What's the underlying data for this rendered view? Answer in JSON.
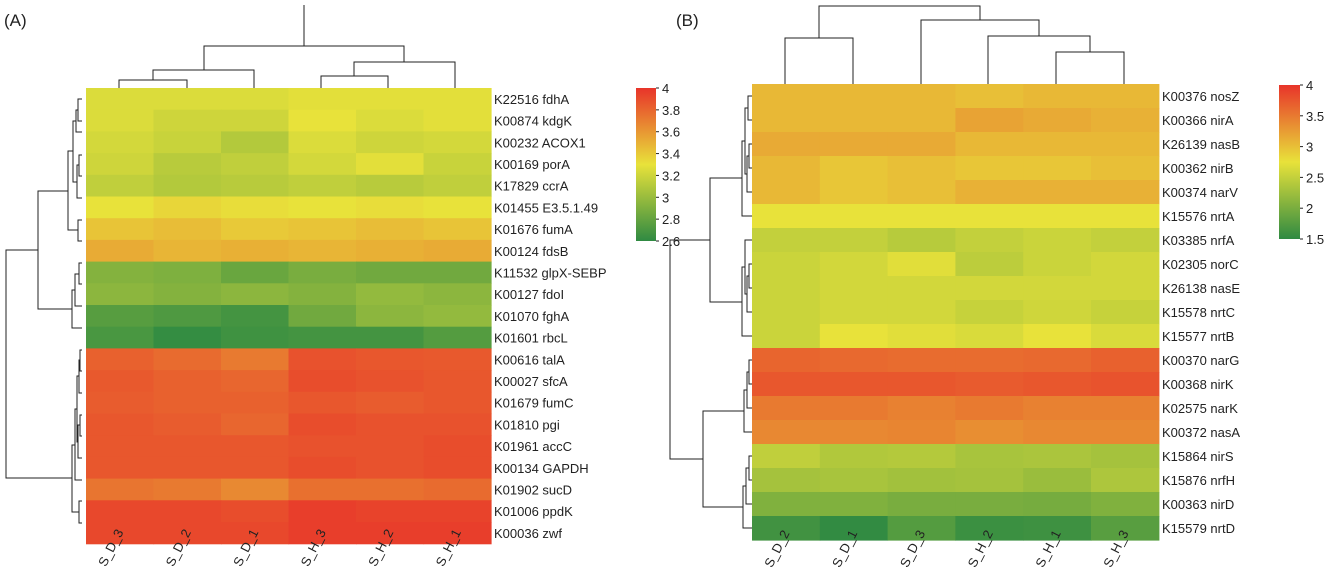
{
  "chart_data": [
    {
      "panel_label": "(A)",
      "type": "heatmap",
      "columns": [
        "S_D_3",
        "S_D_2",
        "S_D_1",
        "S_H_3",
        "S_H_2",
        "S_H_1"
      ],
      "rows": [
        "K22516 fdhA",
        "K00874 kdgK",
        "K00232 ACOX1",
        "K00169 porA",
        "K17829 ccrA",
        "K01455 E3.5.1.49",
        "K01676 fumA",
        "K00124 fdsB",
        "K11532 glpX-SEBP",
        "K00127 fdoI",
        "K01070 fghA",
        "K01601 rbcL",
        "K00616 talA",
        "K00027 sfcA",
        "K01679 fumC",
        "K01810 pgi",
        "K01961 accC",
        "K00134 GAPDH",
        "K01902 sucD",
        "K01006 ppdK",
        "K00036 zwf"
      ],
      "values": [
        [
          3.25,
          3.25,
          3.25,
          3.28,
          3.28,
          3.28
        ],
        [
          3.25,
          3.2,
          3.2,
          3.3,
          3.25,
          3.28
        ],
        [
          3.22,
          3.18,
          3.1,
          3.25,
          3.2,
          3.22
        ],
        [
          3.2,
          3.12,
          3.15,
          3.22,
          3.28,
          3.18
        ],
        [
          3.15,
          3.1,
          3.12,
          3.15,
          3.12,
          3.15
        ],
        [
          3.3,
          3.35,
          3.32,
          3.3,
          3.32,
          3.3
        ],
        [
          3.42,
          3.45,
          3.4,
          3.42,
          3.45,
          3.42
        ],
        [
          3.52,
          3.48,
          3.5,
          3.48,
          3.5,
          3.52
        ],
        [
          2.92,
          2.9,
          2.82,
          2.88,
          2.85,
          2.85
        ],
        [
          2.95,
          2.92,
          2.95,
          2.92,
          2.98,
          2.95
        ],
        [
          2.75,
          2.72,
          2.68,
          2.85,
          2.95,
          2.98
        ],
        [
          2.7,
          2.62,
          2.66,
          2.68,
          2.68,
          2.74
        ],
        [
          3.82,
          3.78,
          3.72,
          3.88,
          3.86,
          3.85
        ],
        [
          3.85,
          3.82,
          3.8,
          3.9,
          3.88,
          3.86
        ],
        [
          3.84,
          3.82,
          3.82,
          3.86,
          3.84,
          3.86
        ],
        [
          3.86,
          3.84,
          3.8,
          3.9,
          3.88,
          3.88
        ],
        [
          3.86,
          3.86,
          3.86,
          3.88,
          3.88,
          3.9
        ],
        [
          3.86,
          3.86,
          3.86,
          3.9,
          3.88,
          3.9
        ],
        [
          3.74,
          3.72,
          3.66,
          3.76,
          3.76,
          3.78
        ],
        [
          3.92,
          3.92,
          3.9,
          3.96,
          3.94,
          3.94
        ],
        [
          3.92,
          3.92,
          3.92,
          3.96,
          3.96,
          3.96
        ]
      ],
      "colorbar": {
        "min": 2.6,
        "max": 4,
        "ticks": [
          "4",
          "3.8",
          "3.6",
          "3.4",
          "3.2",
          "3",
          "2.8",
          "2.6"
        ]
      },
      "color_stops": [
        "#2f8a42",
        "#e8e23a",
        "#e8342a"
      ]
    },
    {
      "panel_label": "(B)",
      "type": "heatmap",
      "columns": [
        "S_D_2",
        "S_D_1",
        "S_D_3",
        "S_H_2",
        "S_H_1",
        "S_H_3"
      ],
      "rows": [
        "K00376 nosZ",
        "K00366 nirA",
        "K26139 nasB",
        "K00362 nirB",
        "K00374 narV",
        "K15576 nrtA",
        "K03385 nrfA",
        "K02305 norC",
        "K26138 nasE",
        "K15578 nrtC",
        "K15577 nrtB",
        "K00370 narG",
        "K00368 nirK",
        "K02575 narK",
        "K00372 nasA",
        "K15864 nirS",
        "K15876 nrfH",
        "K00363 nirD",
        "K15579 nrtD"
      ],
      "values": [
        [
          3.05,
          3.05,
          3.05,
          3.0,
          3.05,
          3.05
        ],
        [
          3.05,
          3.05,
          3.05,
          3.2,
          3.15,
          3.1
        ],
        [
          3.15,
          3.15,
          3.15,
          3.05,
          3.05,
          3.05
        ],
        [
          3.05,
          2.95,
          3.0,
          2.95,
          2.95,
          3.0
        ],
        [
          3.05,
          2.95,
          3.0,
          3.1,
          3.1,
          3.1
        ],
        [
          2.75,
          2.75,
          2.75,
          2.75,
          2.75,
          2.75
        ],
        [
          2.5,
          2.5,
          2.42,
          2.5,
          2.55,
          2.5
        ],
        [
          2.55,
          2.6,
          2.7,
          2.45,
          2.55,
          2.6
        ],
        [
          2.55,
          2.6,
          2.6,
          2.6,
          2.6,
          2.6
        ],
        [
          2.55,
          2.6,
          2.6,
          2.52,
          2.58,
          2.52
        ],
        [
          2.55,
          2.75,
          2.7,
          2.65,
          2.75,
          2.65
        ],
        [
          3.65,
          3.62,
          3.6,
          3.6,
          3.62,
          3.68
        ],
        [
          3.75,
          3.75,
          3.75,
          3.72,
          3.75,
          3.78
        ],
        [
          3.5,
          3.5,
          3.45,
          3.5,
          3.45,
          3.45
        ],
        [
          3.4,
          3.4,
          3.42,
          3.35,
          3.4,
          3.4
        ],
        [
          2.48,
          2.38,
          2.4,
          2.32,
          2.34,
          2.3
        ],
        [
          2.3,
          2.32,
          2.28,
          2.3,
          2.22,
          2.35
        ],
        [
          2.05,
          2.05,
          2.0,
          2.0,
          1.98,
          2.05
        ],
        [
          1.62,
          1.52,
          1.75,
          1.58,
          1.6,
          1.78
        ]
      ],
      "colorbar": {
        "min": 1.5,
        "max": 4,
        "ticks": [
          "4",
          "3.5",
          "3",
          "2.5",
          "2",
          "1.5"
        ]
      },
      "color_stops": [
        "#2f8a42",
        "#e8e23a",
        "#e8342a"
      ]
    }
  ]
}
